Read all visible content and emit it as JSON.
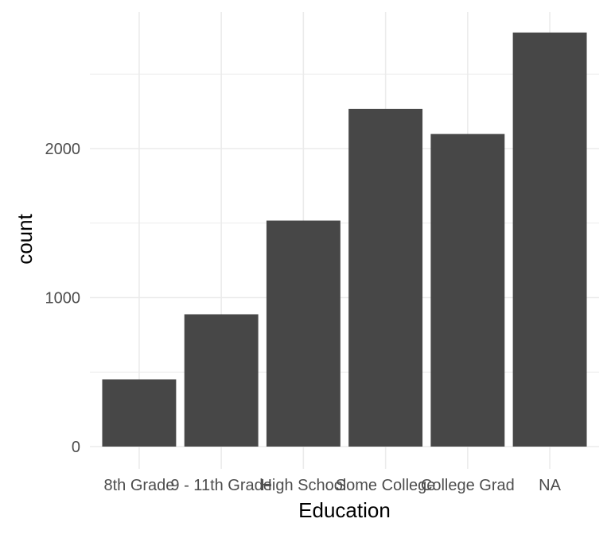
{
  "chart_data": {
    "type": "bar",
    "title": "",
    "xlabel": "Education",
    "ylabel": "count",
    "categories": [
      "8th Grade",
      "9 - 11th Grade",
      "High School",
      "Some College",
      "College Grad",
      "NA"
    ],
    "values": [
      451,
      888,
      1517,
      2267,
      2098,
      2779
    ],
    "ylim": [
      0,
      2900
    ],
    "yticks": [
      0,
      1000,
      2000
    ],
    "grid": true,
    "legend": "none",
    "colors": {
      "bar": "#474747",
      "grid": "#ebebeb",
      "background": "#ffffff"
    }
  }
}
